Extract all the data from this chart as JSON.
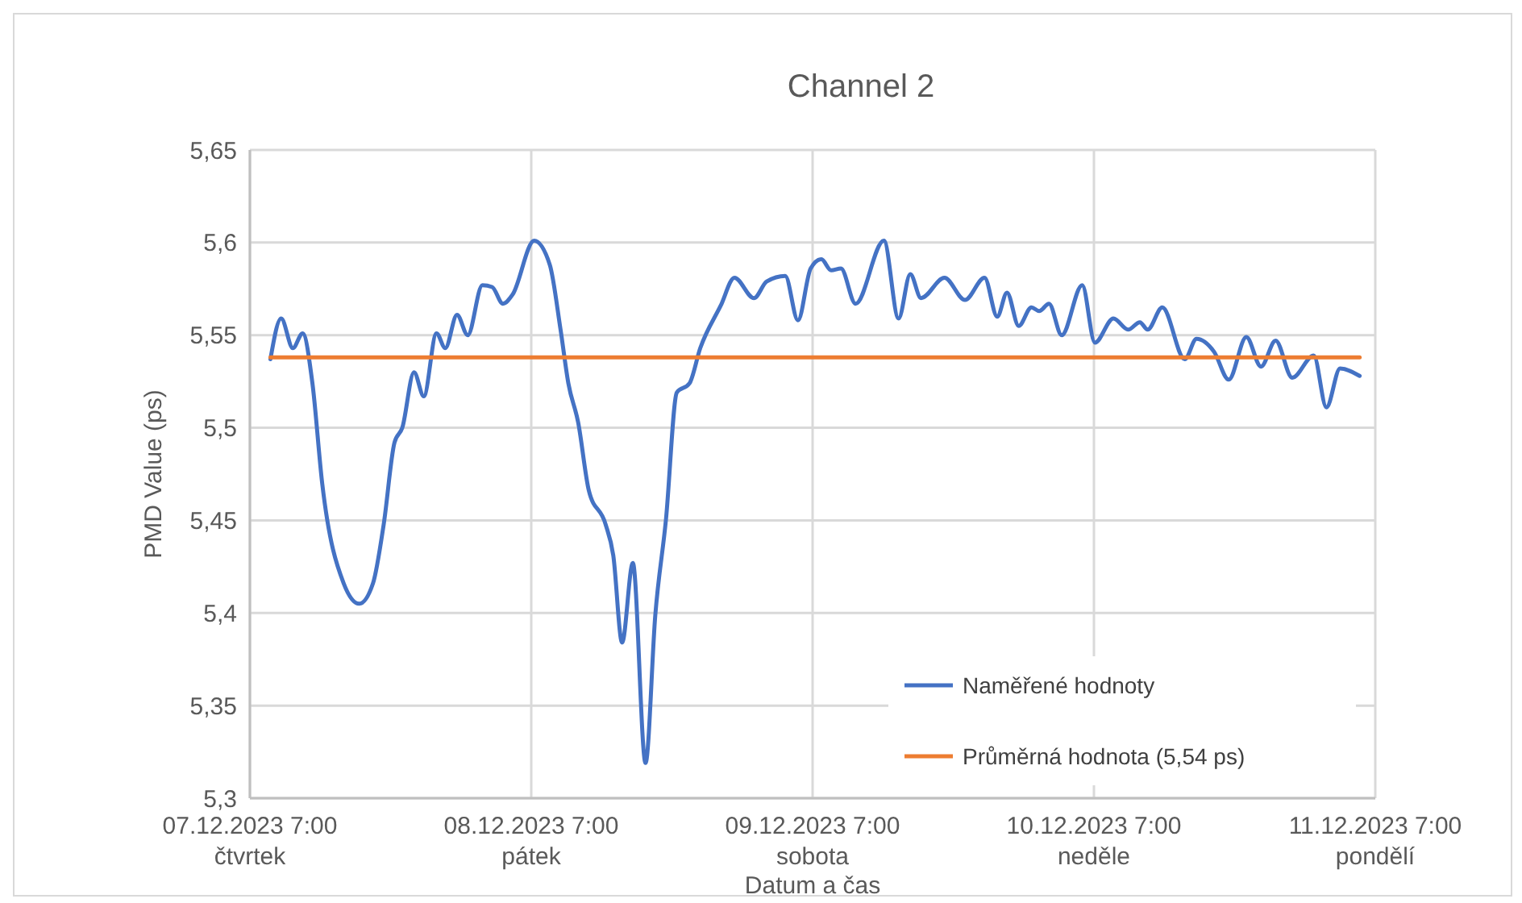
{
  "chart_data": {
    "type": "line",
    "title": "Channel 2",
    "xlabel": "Datum a čas",
    "ylabel": "PMD Value (ps)",
    "xlim": [
      "2023-12-07T07:00",
      "2023-12-11T07:00"
    ],
    "xticks": [
      {
        "value": "2023-12-07T07:00",
        "label": "07.12.2023 7:00\nčtvrtek"
      },
      {
        "value": "2023-12-08T07:00",
        "label": "08.12.2023 7:00\npátek"
      },
      {
        "value": "2023-12-09T07:00",
        "label": "09.12.2023 7:00\nsobota"
      },
      {
        "value": "2023-12-10T07:00",
        "label": "10.12.2023 7:00\nneděle"
      },
      {
        "value": "2023-12-11T07:00",
        "label": "11.12.2023 7:00\npondělí"
      }
    ],
    "ylim": [
      5.3,
      5.65
    ],
    "yticks": [
      {
        "value": 5.3,
        "label": "5,3"
      },
      {
        "value": 5.35,
        "label": "5,35"
      },
      {
        "value": 5.4,
        "label": "5,4"
      },
      {
        "value": 5.45,
        "label": "5,45"
      },
      {
        "value": 5.5,
        "label": "5,5"
      },
      {
        "value": 5.55,
        "label": "5,55"
      },
      {
        "value": 5.6,
        "label": "5,6"
      },
      {
        "value": 5.65,
        "label": "5,65"
      }
    ],
    "grid": true,
    "legend": "bottom right",
    "marker": "none",
    "line_style": "solid",
    "series": [
      {
        "name": "Naměřené hodnoty",
        "color": "#4472c4",
        "x": [
          "2023-12-07T08:45",
          "2023-12-07T09:40",
          "2023-12-07T10:40",
          "2023-12-07T11:30",
          "2023-12-07T12:20",
          "2023-12-07T13:10",
          "2023-12-07T15:00",
          "2023-12-07T16:20",
          "2023-12-07T17:30",
          "2023-12-07T18:25",
          "2023-12-07T19:20",
          "2023-12-07T20:00",
          "2023-12-07T21:00",
          "2023-12-07T21:50",
          "2023-12-07T22:55",
          "2023-12-07T23:40",
          "2023-12-08T00:40",
          "2023-12-08T01:35",
          "2023-12-08T02:50",
          "2023-12-08T03:40",
          "2023-12-08T04:35",
          "2023-12-08T05:25",
          "2023-12-08T07:15",
          "2023-12-08T08:35",
          "2023-12-08T09:30",
          "2023-12-08T10:10",
          "2023-12-08T11:00",
          "2023-12-08T11:55",
          "2023-12-08T13:20",
          "2023-12-08T14:00",
          "2023-12-08T14:45",
          "2023-12-08T15:40",
          "2023-12-08T16:45",
          "2023-12-08T17:35",
          "2023-12-08T18:30",
          "2023-12-08T19:25",
          "2023-12-08T20:30",
          "2023-12-08T21:25",
          "2023-12-08T23:10",
          "2023-12-09T00:20",
          "2023-12-09T02:00",
          "2023-12-09T03:05",
          "2023-12-09T04:40",
          "2023-12-09T05:45",
          "2023-12-09T06:50",
          "2023-12-09T07:45",
          "2023-12-09T08:35",
          "2023-12-09T09:25",
          "2023-12-09T10:40",
          "2023-12-09T13:05",
          "2023-12-09T14:20",
          "2023-12-09T15:20",
          "2023-12-09T16:15",
          "2023-12-09T18:15",
          "2023-12-09T20:00",
          "2023-12-09T21:40",
          "2023-12-09T22:45",
          "2023-12-09T23:35",
          "2023-12-10T00:35",
          "2023-12-10T01:40",
          "2023-12-10T02:20",
          "2023-12-10T03:10",
          "2023-12-10T04:15",
          "2023-12-10T06:00",
          "2023-12-10T07:05",
          "2023-12-10T08:40",
          "2023-12-10T09:55",
          "2023-12-10T10:55",
          "2023-12-10T11:35",
          "2023-12-10T12:50",
          "2023-12-10T14:45",
          "2023-12-10T15:45",
          "2023-12-10T17:15",
          "2023-12-10T18:30",
          "2023-12-10T20:00",
          "2023-12-10T21:15",
          "2023-12-10T22:30",
          "2023-12-10T23:55",
          "2023-12-11T01:45",
          "2023-12-11T02:50",
          "2023-12-11T04:00",
          "2023-12-11T05:40"
        ],
        "values": [
          5.537,
          5.559,
          5.543,
          5.551,
          5.524,
          5.47,
          5.416,
          5.405,
          5.416,
          5.448,
          5.492,
          5.5,
          5.53,
          5.517,
          5.551,
          5.543,
          5.561,
          5.55,
          5.577,
          5.576,
          5.567,
          5.572,
          5.601,
          5.588,
          5.553,
          5.524,
          5.503,
          5.466,
          5.448,
          5.431,
          5.384,
          5.427,
          5.319,
          5.399,
          5.451,
          5.519,
          5.524,
          5.543,
          5.566,
          5.581,
          5.57,
          5.579,
          5.582,
          5.558,
          5.586,
          5.591,
          5.585,
          5.586,
          5.567,
          5.601,
          5.559,
          5.583,
          5.57,
          5.581,
          5.569,
          5.581,
          5.56,
          5.573,
          5.555,
          5.565,
          5.563,
          5.567,
          5.55,
          5.577,
          5.546,
          5.559,
          5.553,
          5.557,
          5.553,
          5.565,
          5.537,
          5.548,
          5.541,
          5.526,
          5.549,
          5.533,
          5.547,
          5.527,
          5.539,
          5.511,
          5.532,
          5.528
        ]
      },
      {
        "name": "Průměrná hodnota (5,54 ps)",
        "color": "#ed7d31",
        "x": [
          "2023-12-07T08:45",
          "2023-12-11T05:40"
        ],
        "values": [
          5.538,
          5.538
        ]
      }
    ]
  }
}
